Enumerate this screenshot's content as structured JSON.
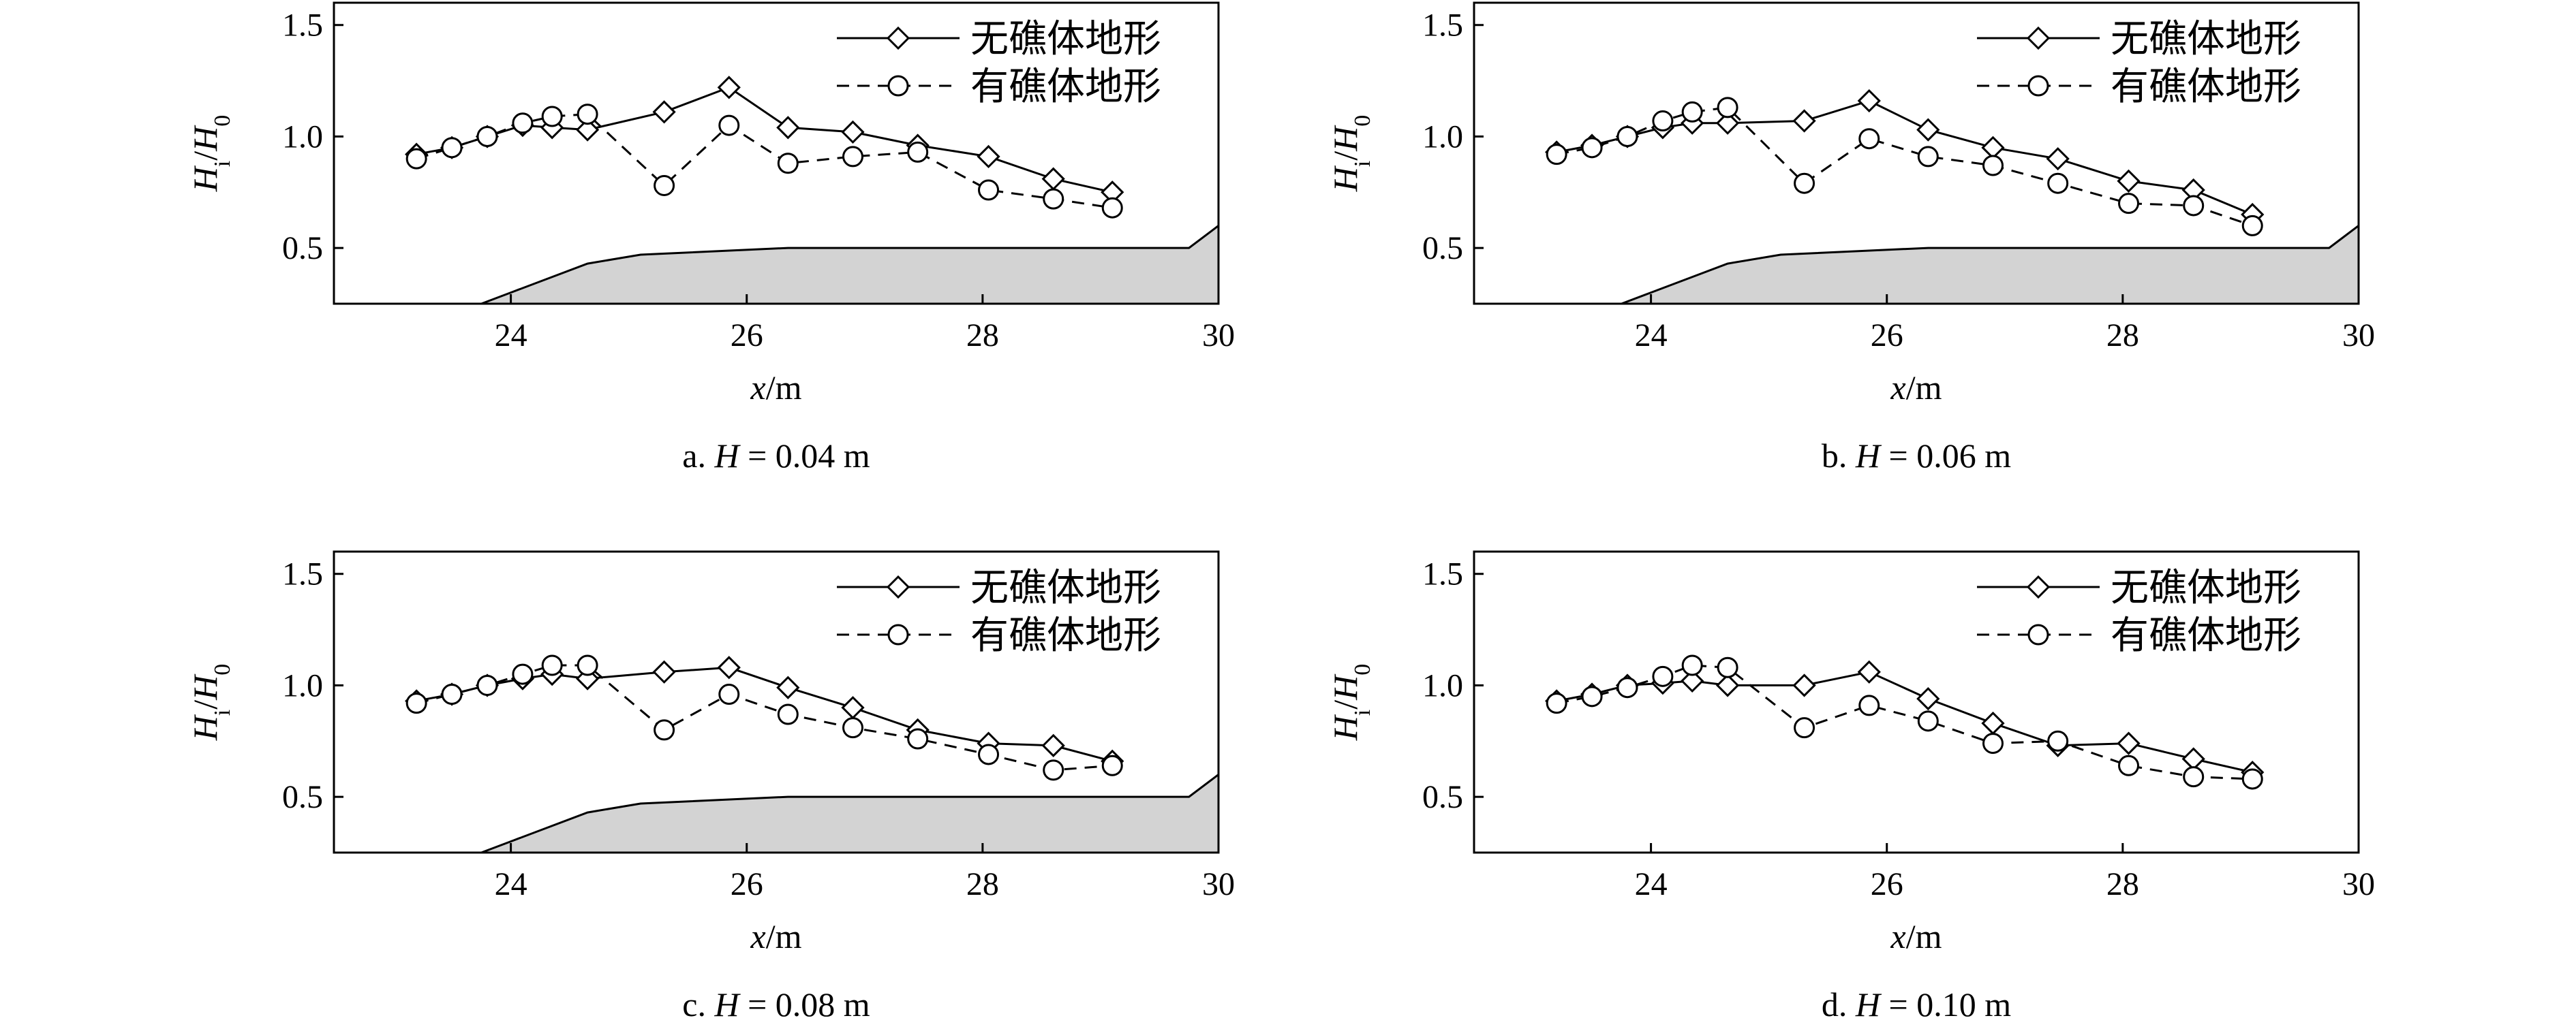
{
  "chart_data": [
    {
      "type": "line",
      "caption": "a. H = 0.04 m",
      "caption_parts": [
        "a. ",
        "H",
        " = 0.04 m"
      ],
      "xlabel": [
        "x",
        "/m"
      ],
      "ylabel": [
        "H",
        "i",
        "/",
        "H",
        "0"
      ],
      "xlim": [
        22.5,
        30
      ],
      "ylim": [
        0.25,
        1.6
      ],
      "xticks": [
        "24",
        "26",
        "28",
        "30"
      ],
      "yticks": [
        "0.5",
        "1.0",
        "1.5"
      ],
      "legend_position": "top-right",
      "series": [
        {
          "name": "无礁体地形",
          "marker": "diamond",
          "line": "solid",
          "x": [
            23.2,
            23.5,
            23.8,
            24.1,
            24.35,
            24.65,
            25.3,
            25.85,
            26.35,
            26.9,
            27.45,
            28.05,
            28.6,
            29.1
          ],
          "y": [
            0.92,
            0.95,
            1.0,
            1.05,
            1.04,
            1.03,
            1.11,
            1.22,
            1.04,
            1.02,
            0.96,
            0.91,
            0.81,
            0.75
          ]
        },
        {
          "name": "有礁体地形",
          "marker": "circle",
          "line": "dashed",
          "x": [
            23.2,
            23.5,
            23.8,
            24.1,
            24.35,
            24.65,
            25.3,
            25.85,
            26.35,
            26.9,
            27.45,
            28.05,
            28.6,
            29.1
          ],
          "y": [
            0.9,
            0.95,
            1.0,
            1.06,
            1.09,
            1.1,
            0.78,
            1.05,
            0.88,
            0.91,
            0.93,
            0.76,
            0.72,
            0.68
          ]
        }
      ],
      "bathymetry": {
        "x": [
          22.5,
          23.75,
          24.0,
          24.3,
          24.65,
          25.1,
          26.35,
          29.75,
          30.0
        ],
        "y": [
          0.25,
          0.25,
          0.3,
          0.36,
          0.43,
          0.47,
          0.5,
          0.5,
          0.6
        ]
      }
    },
    {
      "type": "line",
      "caption": "b. H = 0.06 m",
      "caption_parts": [
        "b. ",
        "H",
        " = 0.06 m"
      ],
      "xlabel": [
        "x",
        "/m"
      ],
      "ylabel": [
        "H",
        "i",
        "/",
        "H",
        "0"
      ],
      "xlim": [
        22.5,
        30
      ],
      "ylim": [
        0.25,
        1.6
      ],
      "xticks": [
        "24",
        "26",
        "28",
        "30"
      ],
      "yticks": [
        "0.5",
        "1.0",
        "1.5"
      ],
      "legend_position": "top-right",
      "series": [
        {
          "name": "无礁体地形",
          "marker": "diamond",
          "line": "solid",
          "x": [
            23.2,
            23.5,
            23.8,
            24.1,
            24.35,
            24.65,
            25.3,
            25.85,
            26.35,
            26.9,
            27.45,
            28.05,
            28.6,
            29.1
          ],
          "y": [
            0.93,
            0.96,
            1.0,
            1.04,
            1.06,
            1.06,
            1.07,
            1.16,
            1.03,
            0.95,
            0.9,
            0.8,
            0.76,
            0.65
          ]
        },
        {
          "name": "有礁体地形",
          "marker": "circle",
          "line": "dashed",
          "x": [
            23.2,
            23.5,
            23.8,
            24.1,
            24.35,
            24.65,
            25.3,
            25.85,
            26.35,
            26.9,
            27.45,
            28.05,
            28.6,
            29.1
          ],
          "y": [
            0.92,
            0.95,
            1.0,
            1.07,
            1.11,
            1.13,
            0.79,
            0.99,
            0.91,
            0.87,
            0.79,
            0.7,
            0.69,
            0.6
          ]
        }
      ],
      "bathymetry": {
        "x": [
          22.5,
          23.75,
          24.0,
          24.3,
          24.65,
          25.1,
          26.35,
          29.75,
          30.0
        ],
        "y": [
          0.25,
          0.25,
          0.3,
          0.36,
          0.43,
          0.47,
          0.5,
          0.5,
          0.6
        ]
      }
    },
    {
      "type": "line",
      "caption": "c. H = 0.08 m",
      "caption_parts": [
        "c. ",
        "H",
        " = 0.08 m"
      ],
      "xlabel": [
        "x",
        "/m"
      ],
      "ylabel": [
        "H",
        "i",
        "/",
        "H",
        "0"
      ],
      "xlim": [
        22.5,
        30
      ],
      "ylim": [
        0.25,
        1.6
      ],
      "xticks": [
        "24",
        "26",
        "28",
        "30"
      ],
      "yticks": [
        "0.5",
        "1.0",
        "1.5"
      ],
      "legend_position": "top-right",
      "series": [
        {
          "name": "无礁体地形",
          "marker": "diamond",
          "line": "solid",
          "x": [
            23.2,
            23.5,
            23.8,
            24.1,
            24.35,
            24.65,
            25.3,
            25.85,
            26.35,
            26.9,
            27.45,
            28.05,
            28.6,
            29.1
          ],
          "y": [
            0.93,
            0.96,
            1.0,
            1.03,
            1.05,
            1.03,
            1.06,
            1.08,
            0.99,
            0.9,
            0.8,
            0.74,
            0.73,
            0.66
          ]
        },
        {
          "name": "有礁体地形",
          "marker": "circle",
          "line": "dashed",
          "x": [
            23.2,
            23.5,
            23.8,
            24.1,
            24.35,
            24.65,
            25.3,
            25.85,
            26.35,
            26.9,
            27.45,
            28.05,
            28.6,
            29.1
          ],
          "y": [
            0.92,
            0.96,
            1.0,
            1.05,
            1.09,
            1.09,
            0.8,
            0.96,
            0.87,
            0.81,
            0.76,
            0.69,
            0.62,
            0.64
          ]
        }
      ],
      "bathymetry": {
        "x": [
          22.5,
          23.75,
          24.0,
          24.3,
          24.65,
          25.1,
          26.35,
          29.75,
          30.0
        ],
        "y": [
          0.25,
          0.25,
          0.3,
          0.36,
          0.43,
          0.47,
          0.5,
          0.5,
          0.6
        ]
      }
    },
    {
      "type": "line",
      "caption": "d. H = 0.10 m",
      "caption_parts": [
        "d. ",
        "H",
        " = 0.10 m"
      ],
      "xlabel": [
        "x",
        "/m"
      ],
      "ylabel": [
        "H",
        "i",
        "/",
        "H",
        "0"
      ],
      "xlim": [
        22.5,
        30
      ],
      "ylim": [
        0.25,
        1.6
      ],
      "xticks": [
        "24",
        "26",
        "28",
        "30"
      ],
      "yticks": [
        "0.5",
        "1.0",
        "1.5"
      ],
      "legend_position": "top-right",
      "series": [
        {
          "name": "无礁体地形",
          "marker": "diamond",
          "line": "solid",
          "x": [
            23.2,
            23.5,
            23.8,
            24.1,
            24.35,
            24.65,
            25.3,
            25.85,
            26.35,
            26.9,
            27.45,
            28.05,
            28.6,
            29.1
          ],
          "y": [
            0.93,
            0.96,
            1.0,
            1.01,
            1.02,
            1.0,
            1.0,
            1.06,
            0.94,
            0.83,
            0.73,
            0.74,
            0.67,
            0.61
          ]
        },
        {
          "name": "有礁体地形",
          "marker": "circle",
          "line": "dashed",
          "x": [
            23.2,
            23.5,
            23.8,
            24.1,
            24.35,
            24.65,
            25.3,
            25.85,
            26.35,
            26.9,
            27.45,
            28.05,
            28.6,
            29.1
          ],
          "y": [
            0.92,
            0.95,
            0.99,
            1.04,
            1.09,
            1.08,
            0.81,
            0.91,
            0.84,
            0.74,
            0.75,
            0.64,
            0.59,
            0.58
          ]
        }
      ],
      "bathymetry": null
    }
  ]
}
